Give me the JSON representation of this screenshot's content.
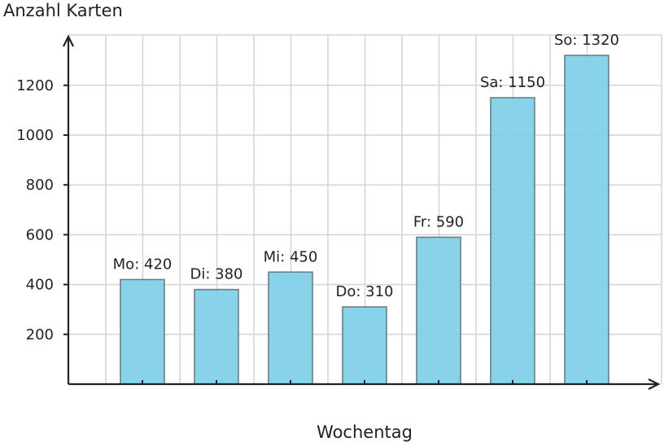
{
  "chart_data": {
    "type": "bar",
    "xlabel": "Wochentag",
    "ylabel": "Anzahl Karten",
    "categories": [
      "Mo",
      "Di",
      "Mi",
      "Do",
      "Fr",
      "Sa",
      "So"
    ],
    "values": [
      420,
      380,
      450,
      310,
      590,
      1150,
      1320
    ],
    "data_labels": [
      "Mo: 420",
      "Di: 380",
      "Mi: 450",
      "Do: 310",
      "Fr: 590",
      "Sa: 1150",
      "So: 1320"
    ],
    "yticks": [
      200,
      400,
      600,
      800,
      1000,
      1200
    ],
    "ylim": [
      0,
      1400
    ],
    "grid": true,
    "bar_color": "#7ecfe8"
  }
}
